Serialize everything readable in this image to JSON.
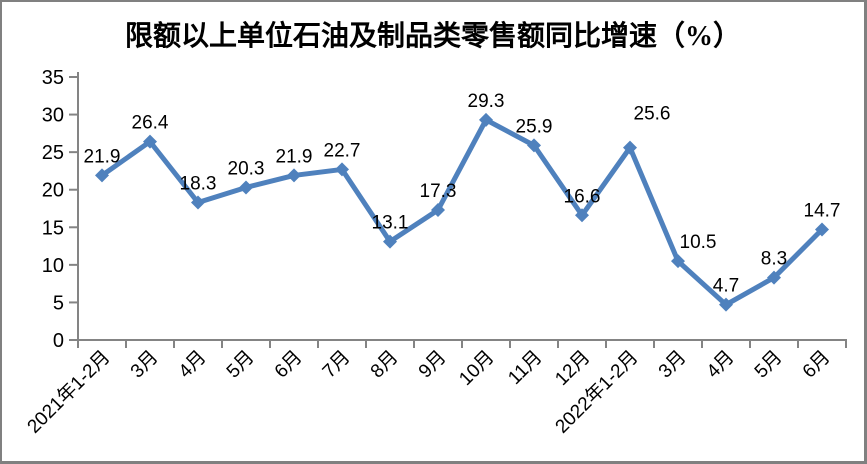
{
  "chart_data": {
    "type": "line",
    "title": "限额以上单位石油及制品类零售额同比增速（%）",
    "categories": [
      "2021年1-2月",
      "3月",
      "4月",
      "5月",
      "6月",
      "7月",
      "8月",
      "9月",
      "10月",
      "11月",
      "12月",
      "2022年1-2月",
      "3月",
      "4月",
      "5月",
      "6月"
    ],
    "values": [
      21.9,
      26.4,
      18.3,
      20.3,
      21.9,
      22.7,
      13.1,
      17.3,
      29.3,
      25.9,
      16.6,
      25.6,
      10.5,
      4.7,
      8.3,
      14.7
    ],
    "data_labels": [
      "21.9",
      "26.4",
      "18.3",
      "20.3",
      "21.9",
      "22.7",
      "13.1",
      "17.3",
      "29.3",
      "25.9",
      "16.6",
      "25.6",
      "10.5",
      "4.7",
      "8.3",
      "14.7"
    ],
    "xlabel": "",
    "ylabel": "",
    "ylim": [
      0,
      35
    ],
    "yticks": [
      0,
      5,
      10,
      15,
      20,
      25,
      30,
      35
    ],
    "grid": false,
    "legend": "none",
    "marker": "diamond",
    "series_color": "#4F81BD",
    "axis_color": "#848484",
    "text_color": "#000000",
    "frame_border_color": "#808080",
    "label_dx": [
      0,
      0,
      0,
      0,
      0,
      0,
      0,
      0,
      0,
      0,
      0,
      22,
      20,
      0,
      0,
      0
    ],
    "label_dy": [
      0,
      0,
      0,
      0,
      0,
      0,
      0,
      0,
      0,
      0,
      0,
      -15,
      0,
      0,
      0,
      0
    ],
    "xtick_rotation_deg": -45
  }
}
